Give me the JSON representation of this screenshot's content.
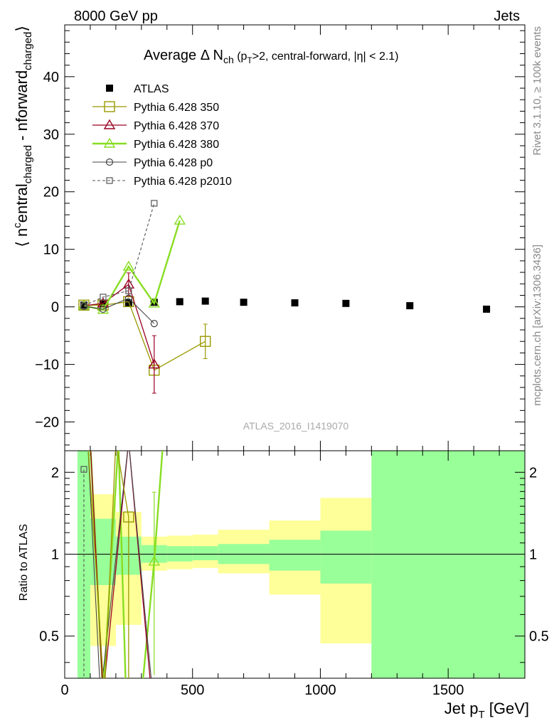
{
  "header": {
    "left": "8000 GeV pp",
    "right": "Jets"
  },
  "side_text": {
    "rivet": "Rivet 3.1.10, ≥ 100k events",
    "mcplots": "mcplots.cern.ch [arXiv:1306.3436]"
  },
  "colors": {
    "atlas": "#000000",
    "p350": "#999900",
    "p370": "#990022",
    "p380": "#88dd22",
    "p0": "#444444",
    "p2010": "#555555",
    "band_yellow": "#ffff99",
    "band_green": "#99ff99"
  },
  "chart_data": [
    {
      "type": "scatter",
      "title": "Average Δ N_ch (p_T>2, central-forward, |η| < 2.1)",
      "title_parts": {
        "main": "Average Δ N",
        "sub1": "ch",
        "p1": " (p",
        "sub2": "T",
        "p2": ">2, central-forward, |η| < 2.1)"
      },
      "ylabel": "⟨ n^central_charged - n^forward_charged ⟩",
      "ylabel_parts": {
        "open": "⟨ n",
        "sup": "c",
        "a": "entral",
        "sub_a": "charged",
        "b": " - n",
        "c": "forward",
        "sub_b": "charged",
        "close": "⟩"
      },
      "watermark": "ATLAS_2016_I1419070",
      "xlim": [
        0,
        1800
      ],
      "ylim": [
        -25,
        49
      ],
      "yticks": [
        -20,
        -10,
        0,
        10,
        20,
        30,
        40
      ],
      "ytick_labels": [
        "−20",
        "−10",
        "0",
        "10",
        "20",
        "30",
        "40"
      ],
      "legend_position": "top-left",
      "series": [
        {
          "name": "ATLAS",
          "marker": "filled-square",
          "x": [
            75,
            150,
            250,
            350,
            450,
            550,
            700,
            900,
            1100,
            1350,
            1650
          ],
          "y": [
            0.3,
            0.5,
            0.7,
            0.8,
            0.9,
            1.0,
            0.8,
            0.7,
            0.6,
            0.2,
            -0.4
          ]
        },
        {
          "name": "Pythia 6.428 350",
          "marker": "open-square",
          "x": [
            75,
            150,
            250,
            350,
            550
          ],
          "y": [
            0.3,
            0.3,
            0.9,
            -11.0,
            -6.0
          ],
          "yerr": [
            0,
            0,
            0,
            0,
            3.0
          ]
        },
        {
          "name": "Pythia 6.428 370",
          "marker": "open-triangle",
          "x": [
            75,
            150,
            250,
            350
          ],
          "y": [
            0.2,
            0.6,
            3.9,
            -10.0
          ],
          "yerr": [
            0,
            0,
            2.0,
            5.0
          ]
        },
        {
          "name": "Pythia 6.428 380",
          "marker": "open-triangle",
          "x": [
            75,
            150,
            250,
            350,
            450
          ],
          "y": [
            0.2,
            -0.5,
            7.0,
            0.6,
            15.0
          ]
        },
        {
          "name": "Pythia 6.428 p0",
          "marker": "open-circle",
          "x": [
            75,
            150,
            250,
            350
          ],
          "y": [
            0.1,
            -0.4,
            1.5,
            -2.9
          ]
        },
        {
          "name": "Pythia 6.428 p2010",
          "marker": "open-square-small",
          "x": [
            75,
            150,
            250,
            350
          ],
          "y": [
            0.2,
            1.7,
            2.8,
            18.0
          ]
        }
      ]
    },
    {
      "type": "line",
      "ylabel": "Ratio to ATLAS",
      "xlabel": "Jet p_T [GeV]",
      "xlabel_parts": {
        "a": "Jet p",
        "sub": "T",
        "b": " [GeV]"
      },
      "xlim": [
        0,
        1800
      ],
      "xticks": [
        0,
        500,
        1000,
        1500
      ],
      "ylim": [
        0.35,
        2.4
      ],
      "scale": "log",
      "yticks": [
        0.5,
        1,
        2
      ],
      "ytick_labels": [
        "0.5",
        "1",
        "2"
      ],
      "bins": [
        {
          "lo": 50,
          "hi": 100,
          "yel": [
            0.35,
            2.4
          ],
          "grn": [
            0.35,
            2.4
          ]
        },
        {
          "lo": 100,
          "hi": 200,
          "yel": [
            0.46,
            1.66
          ],
          "grn": [
            0.77,
            1.35
          ]
        },
        {
          "lo": 200,
          "hi": 300,
          "yel": [
            0.55,
            1.43
          ],
          "grn": [
            0.84,
            1.16
          ]
        },
        {
          "lo": 300,
          "hi": 400,
          "yel": [
            0.87,
            1.16
          ],
          "grn": [
            0.93,
            1.08
          ]
        },
        {
          "lo": 400,
          "hi": 500,
          "yel": [
            0.88,
            1.17
          ],
          "grn": [
            0.94,
            1.07
          ]
        },
        {
          "lo": 500,
          "hi": 600,
          "yel": [
            0.89,
            1.18
          ],
          "grn": [
            0.95,
            1.07
          ]
        },
        {
          "lo": 600,
          "hi": 800,
          "yel": [
            0.85,
            1.23
          ],
          "grn": [
            0.92,
            1.09
          ]
        },
        {
          "lo": 800,
          "hi": 1000,
          "yel": [
            0.71,
            1.33
          ],
          "grn": [
            0.87,
            1.13
          ]
        },
        {
          "lo": 1000,
          "hi": 1200,
          "yel": [
            0.47,
            1.61
          ],
          "grn": [
            0.78,
            1.22
          ]
        },
        {
          "lo": 1200,
          "hi": 1800,
          "yel": [
            0.35,
            2.4
          ],
          "grn": [
            0.35,
            2.4
          ]
        }
      ],
      "series": [
        {
          "name": "Pythia 6.428 350",
          "marker": "open-square",
          "x": [
            250
          ],
          "y": [
            1.37
          ]
        },
        {
          "name": "Pythia 6.428 380",
          "marker": "open-triangle",
          "x": [
            350
          ],
          "y": [
            0.94
          ],
          "yerr": [
            0.75
          ]
        },
        {
          "name": "Pythia 6.428 p2010",
          "marker": "open-square-small",
          "x": [
            75
          ],
          "y": [
            2.05
          ]
        }
      ]
    }
  ]
}
